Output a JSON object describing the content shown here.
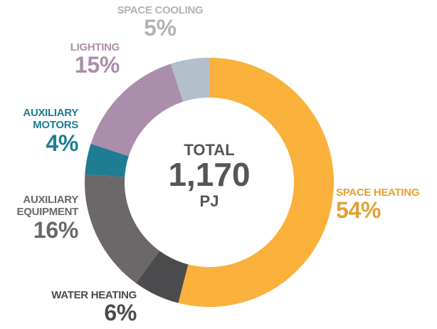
{
  "chart_data": {
    "type": "donut",
    "center_text": [
      "TOTAL",
      "1,170",
      "PJ"
    ],
    "categories": [
      "SPACE HEATING",
      "WATER HEATING",
      "AUXILIARY EQUIPMENT",
      "AUXILIARY MOTORS",
      "LIGHTING",
      "SPACE COOLING"
    ],
    "values": [
      54,
      6,
      16,
      4,
      15,
      5
    ],
    "value_labels": [
      "54%",
      "6%",
      "16%",
      "4%",
      "15%",
      "5%"
    ],
    "colors": [
      "#f9b13c",
      "#4b4b4d",
      "#6c6769",
      "#1e7d92",
      "#ab8eab",
      "#b4bfcc"
    ],
    "label_colors": [
      "#e2a133",
      "#4b4b4d",
      "#6c6769",
      "#1e7d92",
      "#ab8eab",
      "#b3b3b3"
    ]
  }
}
